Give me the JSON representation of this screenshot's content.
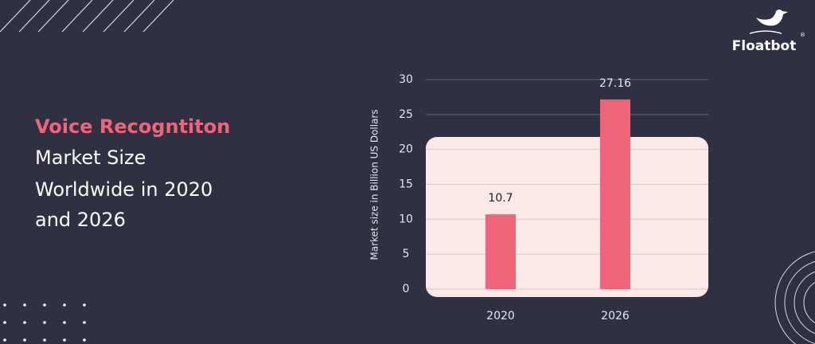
{
  "heading": {
    "highlight": "Voice Recogntiton",
    "lines": [
      "Market Size",
      "Worldwide in 2020",
      "and 2026"
    ]
  },
  "logo": {
    "name": "Floatbot",
    "mark": "®"
  },
  "chart_data": {
    "type": "bar",
    "y_label": "Market size in Billion US Dollars",
    "categories": [
      "2020",
      "2026"
    ],
    "values": [
      10.7,
      27.16
    ],
    "color": "#f0647a",
    "ylim": [
      0,
      30
    ],
    "yticks": [
      0,
      5,
      10,
      15,
      20,
      25,
      30
    ],
    "grid": true
  }
}
